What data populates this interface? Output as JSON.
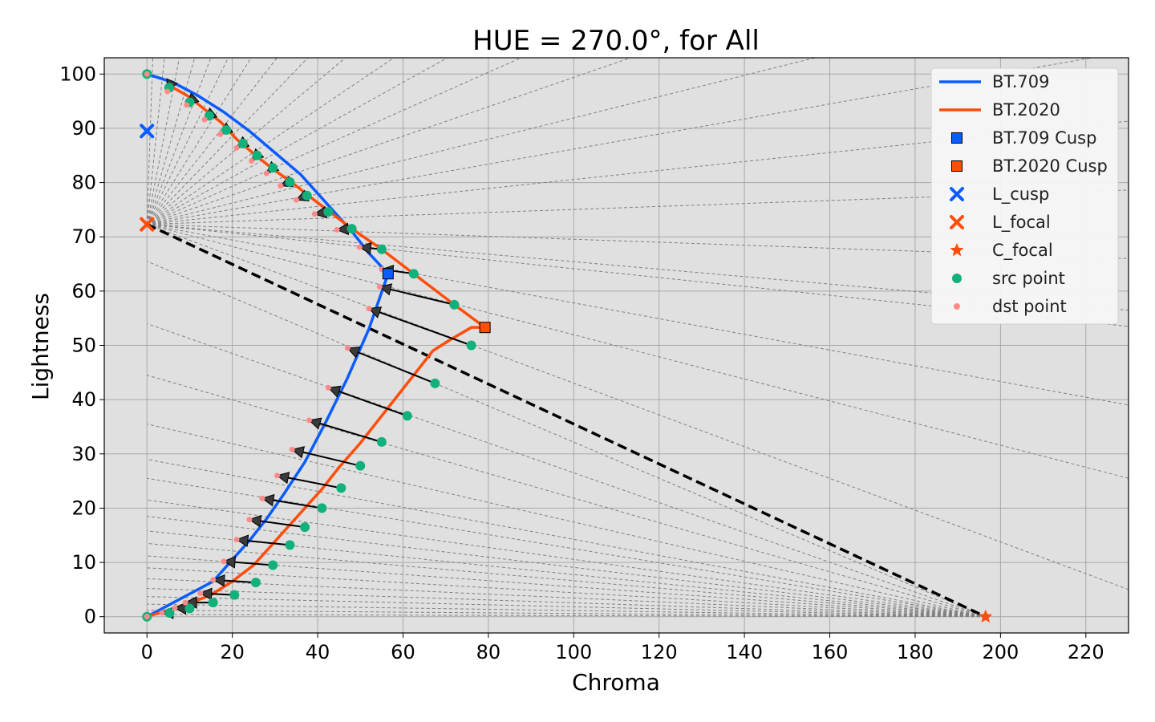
{
  "chart_data": {
    "type": "line",
    "title": "HUE = 270.0°, for All",
    "xlabel": "Chroma",
    "ylabel": "Lightness",
    "xlim": [
      -10,
      230
    ],
    "ylim": [
      -3,
      103
    ],
    "xticks": [
      0,
      20,
      40,
      60,
      80,
      100,
      120,
      140,
      160,
      180,
      200,
      220
    ],
    "yticks": [
      0,
      10,
      20,
      30,
      40,
      50,
      60,
      70,
      80,
      90,
      100
    ],
    "grid": true,
    "legend_position": "top-right",
    "colors": {
      "bt709": "#0a5cff",
      "bt2020": "#ff4d0a",
      "src": "#12b07a",
      "dst": "#ff8a8a",
      "background": "#e0e0e0",
      "grid": "#a8a8a8",
      "ray": "#808080"
    },
    "legend": [
      {
        "label": "BT.709",
        "kind": "line",
        "color": "#0a5cff"
      },
      {
        "label": "BT.2020",
        "kind": "line",
        "color": "#ff4d0a"
      },
      {
        "label": "BT.709 Cusp",
        "kind": "square",
        "color": "#0a5cff"
      },
      {
        "label": "BT.2020 Cusp",
        "kind": "square",
        "color": "#ff4d0a"
      },
      {
        "label": "L_cusp",
        "kind": "x",
        "color": "#0a5cff"
      },
      {
        "label": "L_focal",
        "kind": "x",
        "color": "#ff4d0a"
      },
      {
        "label": "C_focal",
        "kind": "star",
        "color": "#ff4d0a"
      },
      {
        "label": "src point",
        "kind": "circle",
        "color": "#12b07a"
      },
      {
        "label": "dst point",
        "kind": "dot",
        "color": "#ff8a8a"
      }
    ],
    "series": [
      {
        "name": "BT.709",
        "x": [
          0,
          15.5,
          20,
          24,
          28,
          32,
          37,
          42,
          47,
          52,
          56.5,
          52,
          48,
          44,
          40,
          36,
          30,
          24,
          18,
          12,
          6,
          0
        ],
        "y": [
          0,
          6.5,
          10.5,
          14,
          18,
          22.5,
          28.5,
          36,
          44,
          53,
          63.2,
          67,
          71,
          74.5,
          78,
          81.5,
          85.5,
          89.5,
          93,
          96,
          98.5,
          100
        ]
      },
      {
        "name": "BT.2020",
        "x": [
          0,
          5,
          10,
          15,
          20,
          25,
          29,
          33,
          37,
          41,
          45,
          50,
          55,
          61,
          67,
          71,
          76,
          79.2,
          72,
          62.5,
          55,
          48,
          43,
          38,
          34,
          29.5,
          25.5,
          21,
          17.5,
          13.5,
          9.5,
          5
        ],
        "y": [
          0,
          1.2,
          2.5,
          4,
          6.5,
          9.5,
          13,
          16.5,
          20,
          23.5,
          27.5,
          32,
          37,
          43,
          49,
          51,
          53.3,
          53.3,
          57.5,
          63.2,
          67.7,
          71.5,
          74.5,
          77.5,
          80,
          82.5,
          85,
          88,
          91,
          93.5,
          96,
          98
        ]
      }
    ],
    "bt709_cusp": {
      "x": 56.5,
      "y": 63.2
    },
    "bt2020_cusp": {
      "x": 79.2,
      "y": 53.3
    },
    "l_cusp": {
      "x": 0,
      "y": 89.5
    },
    "l_focal": {
      "x": 0,
      "y": 72.3
    },
    "c_focal": {
      "x": 196.5,
      "y": 0
    },
    "focal_line": {
      "x": [
        0,
        196.5
      ],
      "y": [
        72.3,
        0
      ]
    },
    "mapping_pairs": [
      {
        "src": [
          0,
          100
        ],
        "dst": [
          0,
          100
        ]
      },
      {
        "src": [
          5.2,
          97.5
        ],
        "dst": [
          4.8,
          96.8
        ]
      },
      {
        "src": [
          10,
          94.8
        ],
        "dst": [
          9.3,
          94.3
        ]
      },
      {
        "src": [
          14.6,
          92.3
        ],
        "dst": [
          13.5,
          91.6
        ]
      },
      {
        "src": [
          18.6,
          89.7
        ],
        "dst": [
          17.2,
          88.9
        ]
      },
      {
        "src": [
          22.5,
          87.2
        ],
        "dst": [
          21,
          86.4
        ]
      },
      {
        "src": [
          25.8,
          85.0
        ],
        "dst": [
          24.5,
          84.0
        ]
      },
      {
        "src": [
          29.5,
          82.7
        ],
        "dst": [
          28,
          81.7
        ]
      },
      {
        "src": [
          33.5,
          80.1
        ],
        "dst": [
          31.3,
          79.4
        ]
      },
      {
        "src": [
          37.5,
          77.6
        ],
        "dst": [
          35,
          76.8
        ]
      },
      {
        "src": [
          42.5,
          74.6
        ],
        "dst": [
          39.3,
          74.2
        ]
      },
      {
        "src": [
          48,
          71.5
        ],
        "dst": [
          44.5,
          71.3
        ]
      },
      {
        "src": [
          55,
          67.7
        ],
        "dst": [
          49.8,
          68.1
        ]
      },
      {
        "src": [
          62.5,
          63.2
        ],
        "dst": [
          55,
          64.0
        ]
      },
      {
        "src": [
          72,
          57.5
        ],
        "dst": [
          54.5,
          60.8
        ]
      },
      {
        "src": [
          76,
          50
        ],
        "dst": [
          52,
          56.8
        ]
      },
      {
        "src": [
          67.5,
          43
        ],
        "dst": [
          47,
          49.5
        ]
      },
      {
        "src": [
          61,
          37
        ],
        "dst": [
          42.5,
          42.2
        ]
      },
      {
        "src": [
          55,
          32.2
        ],
        "dst": [
          38,
          36.2
        ]
      },
      {
        "src": [
          50,
          27.8
        ],
        "dst": [
          34,
          30.8
        ]
      },
      {
        "src": [
          45.5,
          23.7
        ],
        "dst": [
          30.5,
          26.0
        ]
      },
      {
        "src": [
          41,
          20
        ],
        "dst": [
          27,
          21.8
        ]
      },
      {
        "src": [
          37,
          16.5
        ],
        "dst": [
          24,
          17.9
        ]
      },
      {
        "src": [
          33.5,
          13.2
        ],
        "dst": [
          21,
          14.2
        ]
      },
      {
        "src": [
          29.5,
          9.5
        ],
        "dst": [
          18,
          10.2
        ]
      },
      {
        "src": [
          25.5,
          6.3
        ],
        "dst": [
          15.5,
          6.8
        ]
      },
      {
        "src": [
          20.5,
          4
        ],
        "dst": [
          12.5,
          4.3
        ]
      },
      {
        "src": [
          15.5,
          2.6
        ],
        "dst": [
          9,
          2.6
        ]
      },
      {
        "src": [
          10,
          1.5
        ],
        "dst": [
          6.5,
          1.6
        ]
      },
      {
        "src": [
          5.3,
          0.7
        ],
        "dst": [
          3.5,
          0.7
        ]
      },
      {
        "src": [
          0,
          0
        ],
        "dst": [
          0,
          0
        ]
      }
    ]
  }
}
